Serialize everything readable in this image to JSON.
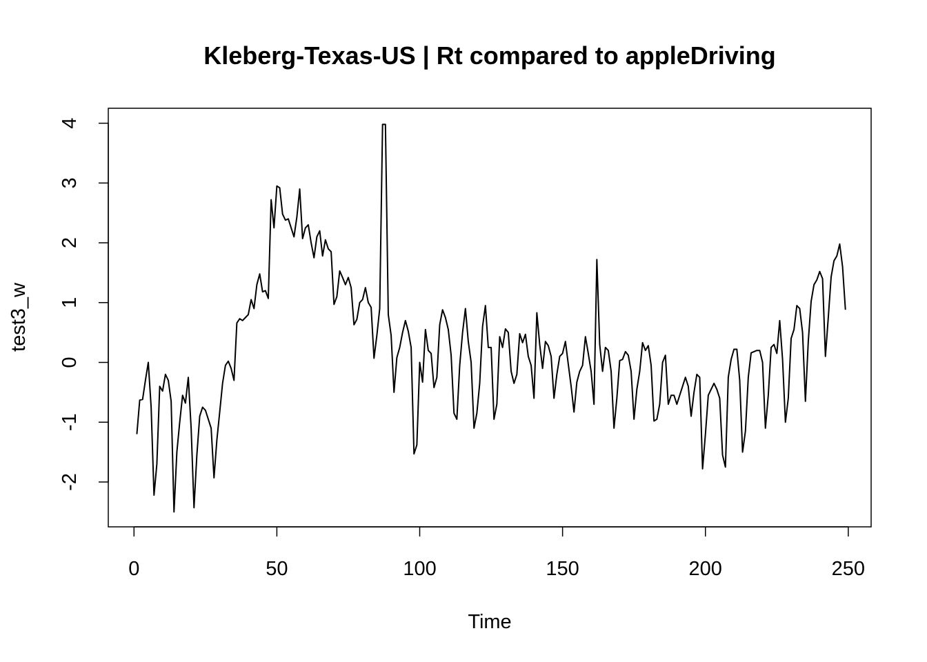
{
  "chart_data": {
    "type": "line",
    "title": "Kleberg-Texas-US | Rt compared to appleDriving",
    "xlabel": "Time",
    "ylabel": "test3_w",
    "xlim": [
      -9,
      258
    ],
    "ylim": [
      -2.75,
      4.25
    ],
    "x_ticks": [
      0,
      50,
      100,
      150,
      200,
      250
    ],
    "y_ticks": [
      -2,
      -1,
      0,
      1,
      2,
      3,
      4
    ],
    "x_tick_labels": [
      "0",
      "50",
      "100",
      "150",
      "200",
      "250"
    ],
    "y_tick_labels": [
      "-2",
      "-1",
      "0",
      "1",
      "2",
      "3",
      "4"
    ],
    "grid": false,
    "line_color": "#000000",
    "series": [
      {
        "x_start": 1,
        "x_step": 1,
        "values": [
          -1.2,
          -0.63,
          -0.62,
          -0.3,
          0,
          -0.75,
          -2.22,
          -1.7,
          -0.4,
          -0.48,
          -0.2,
          -0.3,
          -0.65,
          -2.5,
          -1.5,
          -1.0,
          -0.55,
          -0.68,
          -0.25,
          -1.1,
          -2.43,
          -1.55,
          -0.9,
          -0.75,
          -0.8,
          -0.95,
          -1.1,
          -1.93,
          -1.3,
          -0.83,
          -0.35,
          -0.05,
          0.02,
          -0.1,
          -0.3,
          0.66,
          0.73,
          0.7,
          0.75,
          0.8,
          1.05,
          0.9,
          1.3,
          1.48,
          1.18,
          1.2,
          1.07,
          2.72,
          2.25,
          2.95,
          2.92,
          2.48,
          2.38,
          2.4,
          2.25,
          2.1,
          2.43,
          2.9,
          2.07,
          2.25,
          2.3,
          2.0,
          1.75,
          2.1,
          2.2,
          1.78,
          2.05,
          1.9,
          1.85,
          0.97,
          1.1,
          1.53,
          1.42,
          1.3,
          1.42,
          1.25,
          0.63,
          0.72,
          1.0,
          1.05,
          1.25,
          1.0,
          0.92,
          0.07,
          0.45,
          0.9,
          3.98,
          3.98,
          0.8,
          0.45,
          -0.5,
          0.08,
          0.25,
          0.5,
          0.7,
          0.52,
          0.25,
          -1.53,
          -1.38,
          0.0,
          -0.33,
          0.55,
          0.2,
          0.15,
          -0.42,
          -0.25,
          0.63,
          0.88,
          0.75,
          0.55,
          0.12,
          -0.85,
          -0.95,
          -0.05,
          0.5,
          0.9,
          0.35,
          0.0,
          -1.1,
          -0.85,
          -0.35,
          0.6,
          0.95,
          0.25,
          0.25,
          -0.95,
          -0.7,
          0.43,
          0.25,
          0.56,
          0.5,
          -0.15,
          -0.35,
          -0.2,
          0.48,
          0.33,
          0.47,
          0.1,
          -0.05,
          -0.6,
          0.83,
          0.3,
          -0.1,
          0.35,
          0.28,
          0.1,
          -0.6,
          -0.2,
          0.1,
          0.15,
          0.35,
          -0.03,
          -0.4,
          -0.83,
          -0.33,
          -0.15,
          -0.05,
          0.43,
          0.15,
          -0.15,
          -0.7,
          1.72,
          0.3,
          -0.15,
          0.25,
          0.2,
          -0.15,
          -1.1,
          -0.6,
          0.03,
          0.05,
          0.18,
          0.12,
          -0.15,
          -0.95,
          -0.45,
          -0.15,
          0.33,
          0.2,
          0.28,
          -0.05,
          -0.98,
          -0.95,
          -0.7,
          0.0,
          0.12,
          -0.7,
          -0.55,
          -0.55,
          -0.7,
          -0.55,
          -0.4,
          -0.25,
          -0.4,
          -0.9,
          -0.5,
          -0.2,
          -0.25,
          -1.78,
          -1.2,
          -0.55,
          -0.45,
          -0.35,
          -0.45,
          -0.6,
          -1.55,
          -1.75,
          -0.25,
          0.05,
          0.22,
          0.22,
          -0.3,
          -1.5,
          -1.15,
          -0.25,
          0.16,
          0.18,
          0.2,
          0.2,
          0.0,
          -1.1,
          -0.55,
          0.25,
          0.3,
          0.15,
          0.7,
          0.05,
          -1.0,
          -0.6,
          0.4,
          0.55,
          0.95,
          0.9,
          0.5,
          -0.65,
          0.35,
          1.02,
          1.3,
          1.38,
          1.52,
          1.4,
          0.1,
          0.75,
          1.43,
          1.7,
          1.78,
          1.98,
          1.6,
          0.88
        ]
      }
    ]
  }
}
